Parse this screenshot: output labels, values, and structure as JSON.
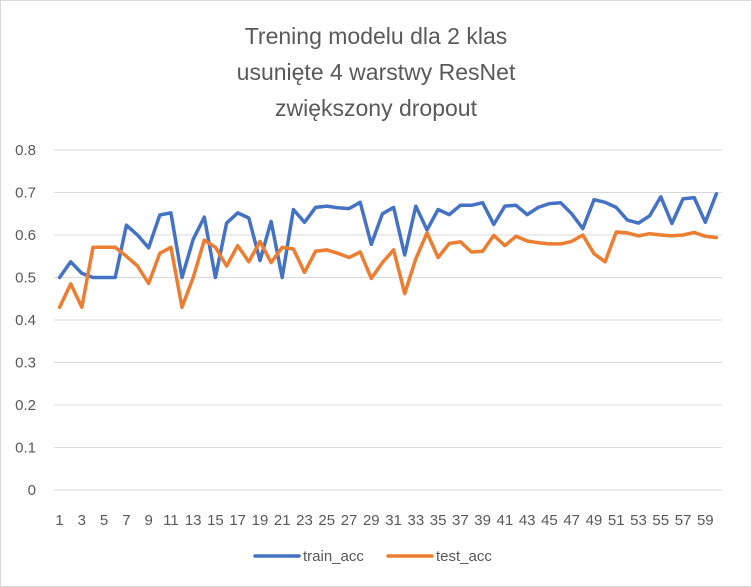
{
  "chart_data": {
    "type": "line",
    "title_lines": [
      "Trening modelu dla 2 klas",
      "usunięte 4 warstwy ResNet",
      "zwiększony dropout"
    ],
    "xlabel": "",
    "ylabel": "",
    "x": [
      1,
      2,
      3,
      4,
      5,
      6,
      7,
      8,
      9,
      10,
      11,
      12,
      13,
      14,
      15,
      16,
      17,
      18,
      19,
      20,
      21,
      22,
      23,
      24,
      25,
      26,
      27,
      28,
      29,
      30,
      31,
      32,
      33,
      34,
      35,
      36,
      37,
      38,
      39,
      40,
      41,
      42,
      43,
      44,
      45,
      46,
      47,
      48,
      49,
      50,
      51,
      52,
      53,
      54,
      55,
      56,
      57,
      58,
      59,
      60
    ],
    "x_tick_labels": [
      "1",
      "3",
      "5",
      "7",
      "9",
      "11",
      "13",
      "15",
      "17",
      "19",
      "21",
      "23",
      "25",
      "27",
      "29",
      "31",
      "33",
      "35",
      "37",
      "39",
      "41",
      "43",
      "45",
      "47",
      "49",
      "51",
      "53",
      "55",
      "57",
      "59"
    ],
    "y_tick_labels": [
      "0",
      "0.1",
      "0.2",
      "0.3",
      "0.4",
      "0.5",
      "0.6",
      "0.7",
      "0.8"
    ],
    "ylim": [
      0,
      0.8
    ],
    "grid": true,
    "legend_position": "bottom",
    "series": [
      {
        "name": "train_acc",
        "color": "#4472C4",
        "values": [
          0.5,
          0.537,
          0.51,
          0.5,
          0.5,
          0.5,
          0.623,
          0.6,
          0.57,
          0.647,
          0.652,
          0.5,
          0.59,
          0.642,
          0.5,
          0.628,
          0.652,
          0.64,
          0.54,
          0.632,
          0.5,
          0.66,
          0.63,
          0.665,
          0.668,
          0.664,
          0.662,
          0.677,
          0.578,
          0.65,
          0.665,
          0.553,
          0.668,
          0.612,
          0.66,
          0.648,
          0.67,
          0.67,
          0.676,
          0.625,
          0.668,
          0.67,
          0.648,
          0.665,
          0.674,
          0.676,
          0.65,
          0.615,
          0.683,
          0.677,
          0.665,
          0.635,
          0.628,
          0.645,
          0.69,
          0.627,
          0.685,
          0.688,
          0.63,
          0.697
        ]
      },
      {
        "name": "test_acc",
        "color": "#ED7D31",
        "values": [
          0.43,
          0.485,
          0.43,
          0.571,
          0.571,
          0.571,
          0.55,
          0.527,
          0.486,
          0.557,
          0.571,
          0.43,
          0.5,
          0.588,
          0.571,
          0.527,
          0.575,
          0.537,
          0.585,
          0.535,
          0.571,
          0.567,
          0.512,
          0.562,
          0.565,
          0.557,
          0.547,
          0.56,
          0.498,
          0.535,
          0.565,
          0.462,
          0.544,
          0.605,
          0.547,
          0.58,
          0.584,
          0.56,
          0.562,
          0.599,
          0.575,
          0.597,
          0.586,
          0.582,
          0.579,
          0.579,
          0.585,
          0.6,
          0.556,
          0.537,
          0.607,
          0.605,
          0.598,
          0.603,
          0.6,
          0.598,
          0.6,
          0.606,
          0.597,
          0.594
        ]
      }
    ]
  }
}
